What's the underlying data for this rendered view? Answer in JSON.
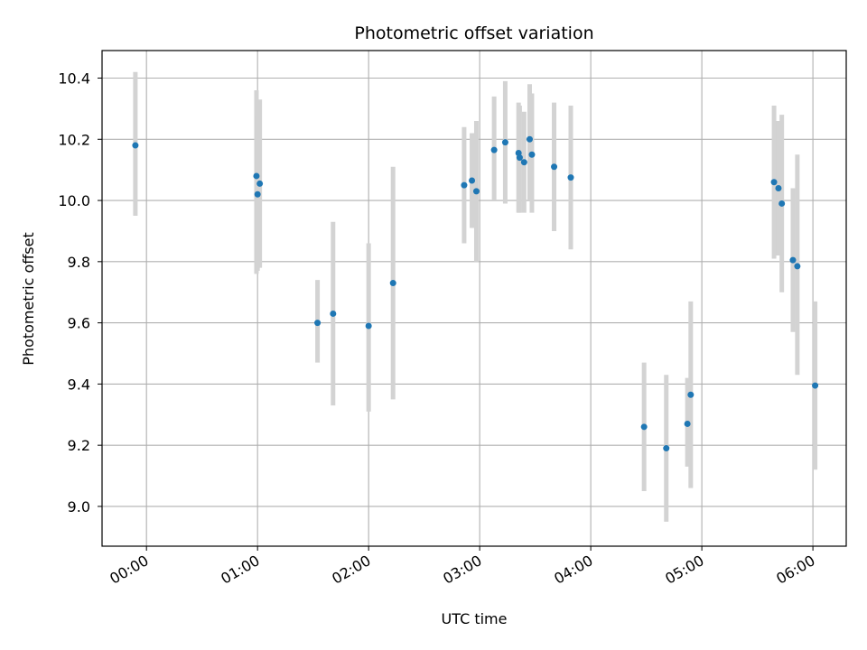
{
  "chart_data": {
    "type": "scatter",
    "title": "Photometric offset variation",
    "xlabel": "UTC time",
    "ylabel": "Photometric offset",
    "xlim_hours": [
      -0.4,
      6.3
    ],
    "ylim": [
      8.87,
      10.49
    ],
    "grid": true,
    "x_ticks": [
      {
        "hour": 0,
        "label": "00:00"
      },
      {
        "hour": 1,
        "label": "01:00"
      },
      {
        "hour": 2,
        "label": "02:00"
      },
      {
        "hour": 3,
        "label": "03:00"
      },
      {
        "hour": 4,
        "label": "04:00"
      },
      {
        "hour": 5,
        "label": "05:00"
      },
      {
        "hour": 6,
        "label": "06:00"
      }
    ],
    "y_ticks": [
      {
        "value": 9.0,
        "label": "9.0"
      },
      {
        "value": 9.2,
        "label": "9.2"
      },
      {
        "value": 9.4,
        "label": "9.4"
      },
      {
        "value": 9.6,
        "label": "9.6"
      },
      {
        "value": 9.8,
        "label": "9.8"
      },
      {
        "value": 10.0,
        "label": "10.0"
      },
      {
        "value": 10.2,
        "label": "10.2"
      },
      {
        "value": 10.4,
        "label": "10.4"
      }
    ],
    "colors": {
      "point": "#1f77b4",
      "errorbar": "#d3d3d3",
      "grid": "#b0b0b0"
    },
    "points": [
      {
        "x": -0.1,
        "y": 10.18,
        "ylo": 9.95,
        "yhi": 10.42
      },
      {
        "x": 0.99,
        "y": 10.08,
        "ylo": 9.76,
        "yhi": 10.36
      },
      {
        "x": 1.0,
        "y": 10.02,
        "ylo": 9.77,
        "yhi": 10.28
      },
      {
        "x": 1.02,
        "y": 10.055,
        "ylo": 9.78,
        "yhi": 10.33
      },
      {
        "x": 1.54,
        "y": 9.6,
        "ylo": 9.47,
        "yhi": 9.74
      },
      {
        "x": 1.68,
        "y": 9.63,
        "ylo": 9.33,
        "yhi": 9.93
      },
      {
        "x": 2.0,
        "y": 9.59,
        "ylo": 9.31,
        "yhi": 9.86
      },
      {
        "x": 2.22,
        "y": 9.73,
        "ylo": 9.35,
        "yhi": 10.11
      },
      {
        "x": 2.86,
        "y": 10.05,
        "ylo": 9.86,
        "yhi": 10.24
      },
      {
        "x": 2.93,
        "y": 10.065,
        "ylo": 9.91,
        "yhi": 10.22
      },
      {
        "x": 2.97,
        "y": 10.03,
        "ylo": 9.8,
        "yhi": 10.26
      },
      {
        "x": 3.13,
        "y": 10.165,
        "ylo": 10.0,
        "yhi": 10.34
      },
      {
        "x": 3.23,
        "y": 10.19,
        "ylo": 9.99,
        "yhi": 10.39
      },
      {
        "x": 3.35,
        "y": 10.155,
        "ylo": 9.96,
        "yhi": 10.32
      },
      {
        "x": 3.36,
        "y": 10.14,
        "ylo": 9.96,
        "yhi": 10.31
      },
      {
        "x": 3.4,
        "y": 10.125,
        "ylo": 9.96,
        "yhi": 10.29
      },
      {
        "x": 3.45,
        "y": 10.2,
        "ylo": 10.0,
        "yhi": 10.38
      },
      {
        "x": 3.47,
        "y": 10.15,
        "ylo": 9.96,
        "yhi": 10.35
      },
      {
        "x": 3.67,
        "y": 10.11,
        "ylo": 9.9,
        "yhi": 10.32
      },
      {
        "x": 3.82,
        "y": 10.075,
        "ylo": 9.84,
        "yhi": 10.31
      },
      {
        "x": 4.48,
        "y": 9.26,
        "ylo": 9.05,
        "yhi": 9.47
      },
      {
        "x": 4.68,
        "y": 9.19,
        "ylo": 8.95,
        "yhi": 9.43
      },
      {
        "x": 4.87,
        "y": 9.27,
        "ylo": 9.13,
        "yhi": 9.42
      },
      {
        "x": 4.9,
        "y": 9.365,
        "ylo": 9.06,
        "yhi": 9.67
      },
      {
        "x": 5.65,
        "y": 10.06,
        "ylo": 9.81,
        "yhi": 10.31
      },
      {
        "x": 5.69,
        "y": 10.04,
        "ylo": 9.82,
        "yhi": 10.26
      },
      {
        "x": 5.72,
        "y": 9.99,
        "ylo": 9.7,
        "yhi": 10.28
      },
      {
        "x": 5.82,
        "y": 9.805,
        "ylo": 9.57,
        "yhi": 10.04
      },
      {
        "x": 5.86,
        "y": 9.785,
        "ylo": 9.43,
        "yhi": 10.15
      },
      {
        "x": 6.02,
        "y": 9.395,
        "ylo": 9.12,
        "yhi": 9.67
      }
    ]
  }
}
